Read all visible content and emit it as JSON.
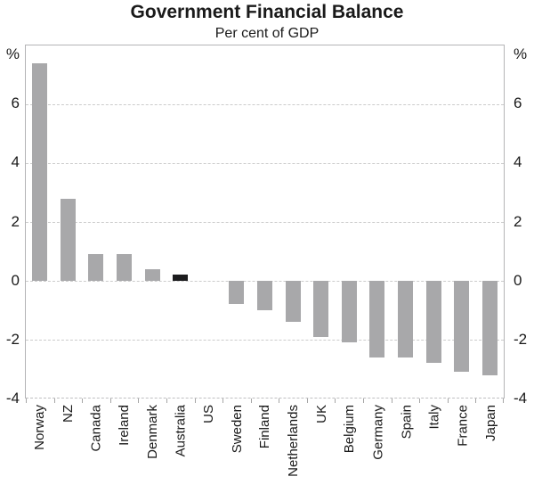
{
  "title": "Government Financial Balance",
  "subtitle": "Per cent of GDP",
  "y_axis_unit_left": "%",
  "y_axis_unit_right": "%",
  "chart_data": {
    "type": "bar",
    "title": "Government Financial Balance",
    "subtitle": "Per cent of GDP",
    "categories": [
      "Norway",
      "NZ",
      "Canada",
      "Ireland",
      "Denmark",
      "Australia",
      "US",
      "Sweden",
      "Finland",
      "Netherlands",
      "UK",
      "Belgium",
      "Germany",
      "Spain",
      "Italy",
      "France",
      "Japan"
    ],
    "values": [
      7.4,
      2.8,
      0.9,
      0.9,
      0.4,
      0.2,
      0.0,
      -0.8,
      -1.0,
      -1.4,
      -1.9,
      -2.1,
      -2.6,
      -2.6,
      -2.8,
      -3.1,
      -3.2
    ],
    "highlight_category": "Australia",
    "ylim": [
      -4,
      8
    ],
    "ytick_labels": [
      "%",
      "6",
      "4",
      "2",
      "0",
      "-2",
      "-4"
    ],
    "ytick_values": [
      8,
      6,
      4,
      2,
      0,
      -2,
      -4
    ],
    "gridline_values": [
      6,
      4,
      2,
      0,
      -2
    ],
    "grid": "horizontal-dashed",
    "legend": "none",
    "xlabel": "",
    "ylabel": "Per cent of GDP",
    "y_axis_sides": "both"
  },
  "colors": {
    "background": "#ffffff",
    "text": "#1a1a1a",
    "bar_default": "#a8a8aa",
    "bar_highlight": "#1c1c1e",
    "gridline": "#cccccc",
    "axis_border": "#b4b4b6",
    "bottom_axis": "#c0c0c2",
    "tick": "#a6a6a6"
  }
}
